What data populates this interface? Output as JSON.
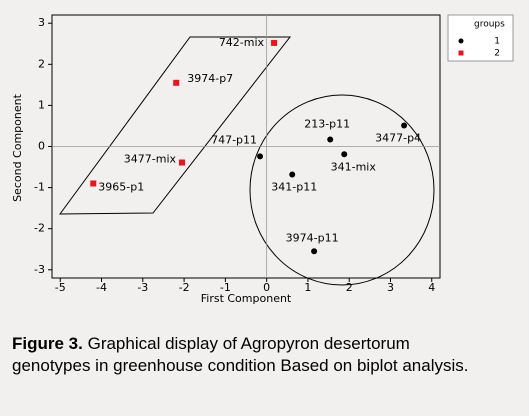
{
  "chart_data": {
    "type": "scatter",
    "xlabel": "First Component",
    "ylabel": "Second Component",
    "xlim": [
      -5.2,
      4.2
    ],
    "ylim": [
      -3.2,
      3.2
    ],
    "xticks": [
      -5,
      -4,
      -3,
      -2,
      -1,
      0,
      1,
      2,
      3,
      4
    ],
    "yticks": [
      -3,
      -2,
      -1,
      0,
      1,
      2,
      3
    ],
    "legend_title": "groups",
    "legend": "upper right",
    "series": [
      {
        "name": "1",
        "color": "#000000",
        "marker": "circle",
        "x": [
          1.54,
          3.33,
          -0.16,
          1.88,
          0.62,
          1.15
        ],
        "values": [
          0.17,
          0.51,
          -0.24,
          -0.19,
          -0.68,
          -2.55
        ],
        "labels": [
          "213-p11",
          "3477-p4",
          "747-p11",
          "341-mix",
          "341-p11",
          "3974-p11"
        ]
      },
      {
        "name": "2",
        "color": "#e8161b",
        "marker": "square",
        "x": [
          0.18,
          -2.19,
          -2.05,
          -4.2
        ],
        "values": [
          2.52,
          1.55,
          -0.39,
          -0.9
        ],
        "labels": [
          "742-mix",
          "3974-p7",
          "3477-mix",
          "3965-p1"
        ]
      }
    ]
  },
  "caption": {
    "label": "Figure 3.",
    "text": "Graphical display of Agropyron desertorum genotypes in greenhouse condition Based on biplot analysis."
  }
}
